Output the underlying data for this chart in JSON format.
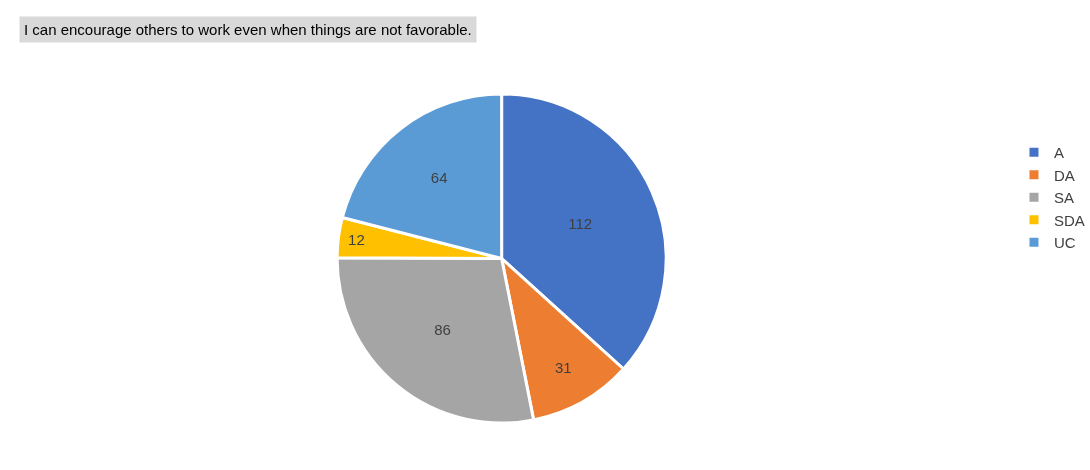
{
  "chart_data": {
    "type": "pie",
    "title": "I can encourage others to work even when things are not favorable.",
    "categories": [
      "A",
      "DA",
      "SA",
      "SDA",
      "UC"
    ],
    "values": [
      112,
      31,
      86,
      12,
      64
    ],
    "colors": [
      "#4472c4",
      "#ed7d31",
      "#a5a5a5",
      "#ffc000",
      "#5b9bd5"
    ],
    "data_labels": true,
    "legend": "right"
  }
}
